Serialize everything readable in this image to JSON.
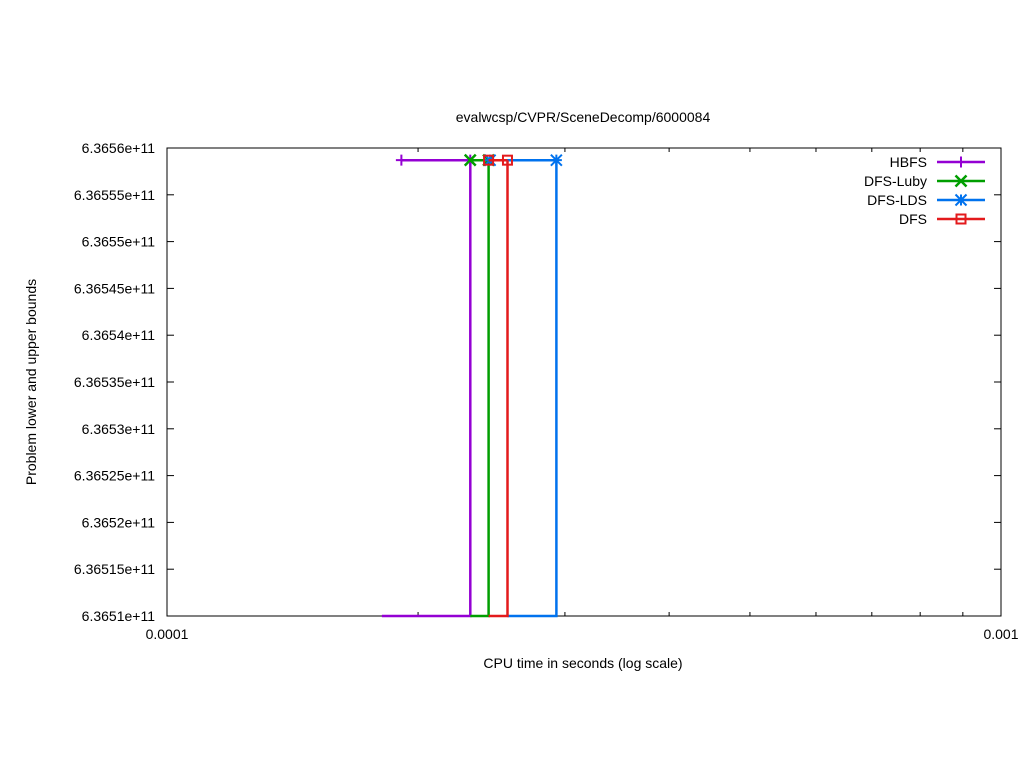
{
  "chart_data": {
    "type": "line",
    "title": "evalwcsp/CVPR/SceneDecomp/6000084",
    "xlabel": "CPU time in seconds (log scale)",
    "ylabel": "Problem lower and upper bounds",
    "x_scale": "log",
    "xlim": [
      0.0001,
      0.001
    ],
    "ylim": [
      636510000000,
      636560000000
    ],
    "x_tick_labels": [
      "0.0001",
      "0.001"
    ],
    "y_tick_labels": [
      "6.3651e+11",
      "6.36515e+11",
      "6.3652e+11",
      "6.36525e+11",
      "6.3653e+11",
      "6.36535e+11",
      "6.3654e+11",
      "6.36545e+11",
      "6.3655e+11",
      "6.36555e+11",
      "6.3656e+11"
    ],
    "legend_position": "top-right",
    "grid": false,
    "series": [
      {
        "name": "HBFS",
        "color": "#9400d3",
        "marker": "plus",
        "lower_bound": [
          [
            0.000181,
            636510000000
          ],
          [
            0.000231,
            636510000000
          ],
          [
            0.000231,
            636558700000
          ]
        ],
        "upper_bound": [
          [
            0.000191,
            636558700000
          ],
          [
            0.000231,
            636558700000
          ]
        ]
      },
      {
        "name": "DFS-Luby",
        "color": "#009e00",
        "marker": "x",
        "lower_bound": [
          [
            0.000231,
            636510000000
          ],
          [
            0.000243,
            636510000000
          ],
          [
            0.000243,
            636558700000
          ]
        ],
        "upper_bound": [
          [
            0.000231,
            636558700000
          ],
          [
            0.000243,
            636558700000
          ]
        ]
      },
      {
        "name": "DFS-LDS",
        "color": "#0072ee",
        "marker": "star",
        "lower_bound": [
          [
            0.000256,
            636510000000
          ],
          [
            0.000293,
            636510000000
          ],
          [
            0.000293,
            636558700000
          ]
        ],
        "upper_bound": [
          [
            0.000244,
            636558700000
          ],
          [
            0.000293,
            636558700000
          ]
        ]
      },
      {
        "name": "DFS",
        "color": "#e31a1c",
        "marker": "square",
        "lower_bound": [
          [
            0.000243,
            636510000000
          ],
          [
            0.000256,
            636510000000
          ],
          [
            0.000256,
            636558700000
          ]
        ],
        "upper_bound": [
          [
            0.000243,
            636558700000
          ],
          [
            0.000256,
            636558700000
          ]
        ]
      }
    ]
  }
}
